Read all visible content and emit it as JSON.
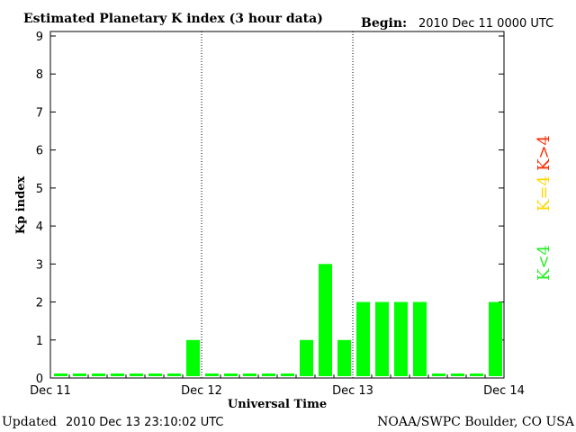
{
  "header": {
    "title": "Estimated Planetary K index (3 hour data)",
    "begin_label": "Begin:",
    "begin_value": "2010 Dec 11 0000 UTC"
  },
  "footer": {
    "updated_label": "Updated",
    "updated_value": "2010 Dec 13 23:10:02 UTC",
    "credit": "NOAA/SWPC Boulder, CO USA"
  },
  "legend": {
    "high": {
      "label": "K>4",
      "color": "#ff2a00"
    },
    "mid": {
      "label": "K=4",
      "color": "#ffd700"
    },
    "low": {
      "label": "K<4",
      "color": "#22ee22"
    }
  },
  "chart_data": {
    "type": "bar",
    "title": "Estimated Planetary K index (3 hour data)",
    "xlabel": "Universal Time",
    "ylabel": "Kp index",
    "ylim": [
      0,
      9
    ],
    "yticks": [
      "0",
      "1",
      "2",
      "3",
      "4",
      "5",
      "6",
      "7",
      "8",
      "9"
    ],
    "xticks": [
      "Dec 11",
      "Dec 12",
      "Dec 13",
      "Dec 14"
    ],
    "bars_per_day": 8,
    "bar_color": "#00ff00",
    "values": [
      0,
      0,
      0,
      0,
      0,
      0,
      0,
      1,
      0,
      0,
      0,
      0,
      0,
      1,
      3,
      1,
      2,
      2,
      2,
      2,
      0,
      0,
      0,
      2
    ],
    "day_separators": "dotted",
    "grid": false
  }
}
